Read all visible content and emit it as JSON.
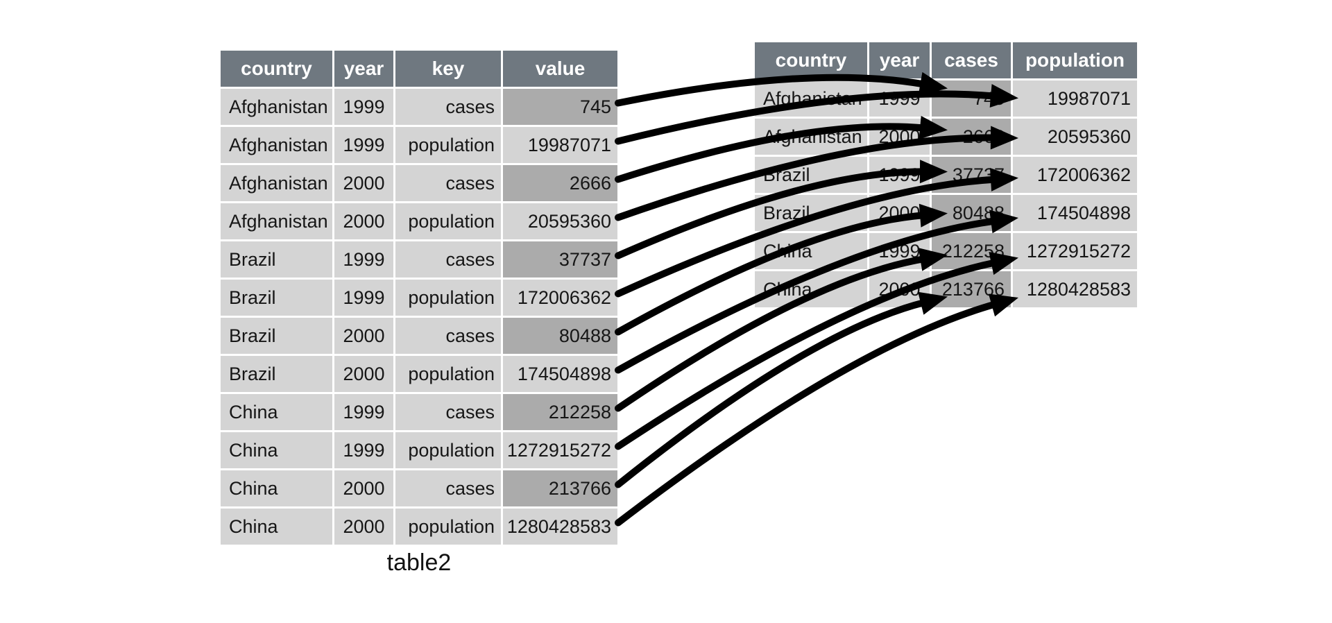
{
  "colors": {
    "background": "#ffffff",
    "header_bg": "#6f7880",
    "header_text": "#ffffff",
    "cell_bg": "#d4d4d4",
    "highlight_bg": "#ababab",
    "cell_text": "#161616",
    "arrow": "#000000"
  },
  "left_table": {
    "caption": "table2",
    "columns": [
      "country",
      "year",
      "key",
      "value"
    ],
    "rows": [
      {
        "country": "Afghanistan",
        "year": "1999",
        "key": "cases",
        "value": "745",
        "value_highlighted": true
      },
      {
        "country": "Afghanistan",
        "year": "1999",
        "key": "population",
        "value": "19987071",
        "value_highlighted": false
      },
      {
        "country": "Afghanistan",
        "year": "2000",
        "key": "cases",
        "value": "2666",
        "value_highlighted": true
      },
      {
        "country": "Afghanistan",
        "year": "2000",
        "key": "population",
        "value": "20595360",
        "value_highlighted": false
      },
      {
        "country": "Brazil",
        "year": "1999",
        "key": "cases",
        "value": "37737",
        "value_highlighted": true
      },
      {
        "country": "Brazil",
        "year": "1999",
        "key": "population",
        "value": "172006362",
        "value_highlighted": false
      },
      {
        "country": "Brazil",
        "year": "2000",
        "key": "cases",
        "value": "80488",
        "value_highlighted": true
      },
      {
        "country": "Brazil",
        "year": "2000",
        "key": "population",
        "value": "174504898",
        "value_highlighted": false
      },
      {
        "country": "China",
        "year": "1999",
        "key": "cases",
        "value": "212258",
        "value_highlighted": true
      },
      {
        "country": "China",
        "year": "1999",
        "key": "population",
        "value": "1272915272",
        "value_highlighted": false
      },
      {
        "country": "China",
        "year": "2000",
        "key": "cases",
        "value": "213766",
        "value_highlighted": true
      },
      {
        "country": "China",
        "year": "2000",
        "key": "population",
        "value": "1280428583",
        "value_highlighted": false
      }
    ]
  },
  "right_table": {
    "columns": [
      "country",
      "year",
      "cases",
      "population"
    ],
    "highlight_column": "cases",
    "rows": [
      {
        "country": "Afghanistan",
        "year": "1999",
        "cases": "745",
        "population": "19987071"
      },
      {
        "country": "Afghanistan",
        "year": "2000",
        "cases": "2666",
        "population": "20595360"
      },
      {
        "country": "Brazil",
        "year": "1999",
        "cases": "37737",
        "population": "172006362"
      },
      {
        "country": "Brazil",
        "year": "2000",
        "cases": "80488",
        "population": "174504898"
      },
      {
        "country": "China",
        "year": "1999",
        "cases": "212258",
        "population": "1272915272"
      },
      {
        "country": "China",
        "year": "2000",
        "cases": "213766",
        "population": "1280428583"
      }
    ]
  },
  "arrows": [
    {
      "from_row": 0,
      "to_row": 0,
      "to_col": "cases"
    },
    {
      "from_row": 1,
      "to_row": 0,
      "to_col": "population"
    },
    {
      "from_row": 2,
      "to_row": 1,
      "to_col": "cases"
    },
    {
      "from_row": 3,
      "to_row": 1,
      "to_col": "population"
    },
    {
      "from_row": 4,
      "to_row": 2,
      "to_col": "cases"
    },
    {
      "from_row": 5,
      "to_row": 2,
      "to_col": "population"
    },
    {
      "from_row": 6,
      "to_row": 3,
      "to_col": "cases"
    },
    {
      "from_row": 7,
      "to_row": 3,
      "to_col": "population"
    },
    {
      "from_row": 8,
      "to_row": 4,
      "to_col": "cases"
    },
    {
      "from_row": 9,
      "to_row": 4,
      "to_col": "population"
    },
    {
      "from_row": 10,
      "to_row": 5,
      "to_col": "cases"
    },
    {
      "from_row": 11,
      "to_row": 5,
      "to_col": "population"
    }
  ]
}
